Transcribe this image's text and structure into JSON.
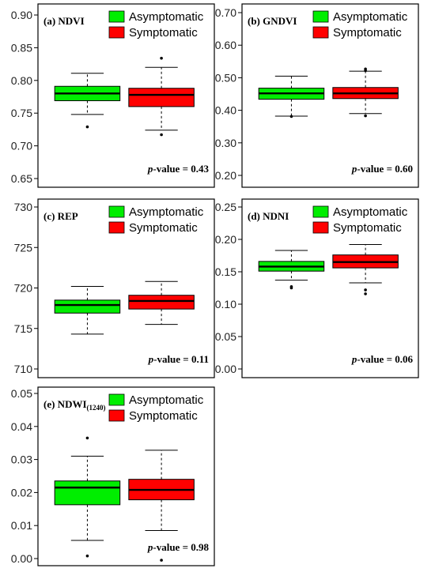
{
  "chart_data": [
    {
      "type": "box",
      "title": "(a) NDVI",
      "ylim": [
        0.65,
        0.9
      ],
      "yticks": [
        "0.65",
        "0.70",
        "0.75",
        "0.80",
        "0.85",
        "0.90"
      ],
      "legend": [
        "Asymptomatic",
        "Symptomatic"
      ],
      "colors": {
        "Asymptomatic": "#00ee00",
        "Symptomatic": "#ff0000"
      },
      "p_label": "p",
      "p_value": "-value = 0.43",
      "series": [
        {
          "name": "Asymptomatic",
          "whisker_low": 0.748,
          "q1": 0.769,
          "median": 0.78,
          "q3": 0.791,
          "whisker_high": 0.811,
          "outliers": [
            0.729
          ]
        },
        {
          "name": "Symptomatic",
          "whisker_low": 0.724,
          "q1": 0.76,
          "median": 0.778,
          "q3": 0.788,
          "whisker_high": 0.82,
          "outliers": [
            0.717,
            0.834
          ]
        }
      ]
    },
    {
      "type": "box",
      "title": "(b) GNDVI",
      "ylim": [
        0.2,
        0.7
      ],
      "yticks": [
        "0.20",
        "0.30",
        "0.40",
        "0.50",
        "0.60",
        "0.70"
      ],
      "legend": [
        "Asymptomatic",
        "Symptomatic"
      ],
      "colors": {
        "Asymptomatic": "#00ee00",
        "Symptomatic": "#ff0000"
      },
      "p_label": "p",
      "p_value": "-value = 0.60",
      "series": [
        {
          "name": "Asymptomatic",
          "whisker_low": 0.382,
          "q1": 0.434,
          "median": 0.452,
          "q3": 0.468,
          "whisker_high": 0.505,
          "outliers": [
            0.381
          ]
        },
        {
          "name": "Symptomatic",
          "whisker_low": 0.39,
          "q1": 0.436,
          "median": 0.452,
          "q3": 0.47,
          "whisker_high": 0.52,
          "outliers": [
            0.383,
            0.522,
            0.527
          ]
        }
      ]
    },
    {
      "type": "box",
      "title": "(c) REP",
      "ylim": [
        710,
        730
      ],
      "yticks": [
        "710",
        "715",
        "720",
        "725",
        "730"
      ],
      "legend": [
        "Asymptomatic",
        "Symptomatic"
      ],
      "colors": {
        "Asymptomatic": "#00ee00",
        "Symptomatic": "#ff0000"
      },
      "p_label": "p",
      "p_value": "-value = 0.11",
      "series": [
        {
          "name": "Asymptomatic",
          "whisker_low": 714.3,
          "q1": 716.9,
          "median": 717.9,
          "q3": 718.5,
          "whisker_high": 720.2,
          "outliers": []
        },
        {
          "name": "Symptomatic",
          "whisker_low": 715.5,
          "q1": 717.4,
          "median": 718.4,
          "q3": 719.1,
          "whisker_high": 720.8,
          "outliers": []
        }
      ]
    },
    {
      "type": "box",
      "title": "(d) NDNI",
      "ylim": [
        0.0,
        0.25
      ],
      "yticks": [
        "0.00",
        "0.05",
        "0.10",
        "0.15",
        "0.20",
        "0.25"
      ],
      "legend": [
        "Asymptomatic",
        "Symptomatic"
      ],
      "colors": {
        "Asymptomatic": "#00ee00",
        "Symptomatic": "#ff0000"
      },
      "p_label": "p",
      "p_value": "-value = 0.06",
      "series": [
        {
          "name": "Asymptomatic",
          "whisker_low": 0.137,
          "q1": 0.151,
          "median": 0.158,
          "q3": 0.166,
          "whisker_high": 0.183,
          "outliers": [
            0.125,
            0.127
          ]
        },
        {
          "name": "Symptomatic",
          "whisker_low": 0.133,
          "q1": 0.156,
          "median": 0.165,
          "q3": 0.176,
          "whisker_high": 0.192,
          "outliers": [
            0.116,
            0.122
          ]
        }
      ]
    },
    {
      "type": "box",
      "title": "(e) NDWI",
      "title_sub": "(1240)",
      "ylim": [
        0.0,
        0.05
      ],
      "yticks": [
        "0.00",
        "0.01",
        "0.02",
        "0.03",
        "0.04",
        "0.05"
      ],
      "legend": [
        "Asymptomatic",
        "Symptomatic"
      ],
      "colors": {
        "Asymptomatic": "#00ee00",
        "Symptomatic": "#ff0000"
      },
      "p_label": "p",
      "p_value": "-value = 0.98",
      "series": [
        {
          "name": "Asymptomatic",
          "whisker_low": 0.0055,
          "q1": 0.0163,
          "median": 0.0215,
          "q3": 0.0235,
          "whisker_high": 0.031,
          "outliers": [
            0.0008,
            0.0365
          ]
        },
        {
          "name": "Symptomatic",
          "whisker_low": 0.0085,
          "q1": 0.0178,
          "median": 0.0208,
          "q3": 0.024,
          "whisker_high": 0.0328,
          "outliers": [
            -0.0005
          ]
        }
      ]
    }
  ]
}
